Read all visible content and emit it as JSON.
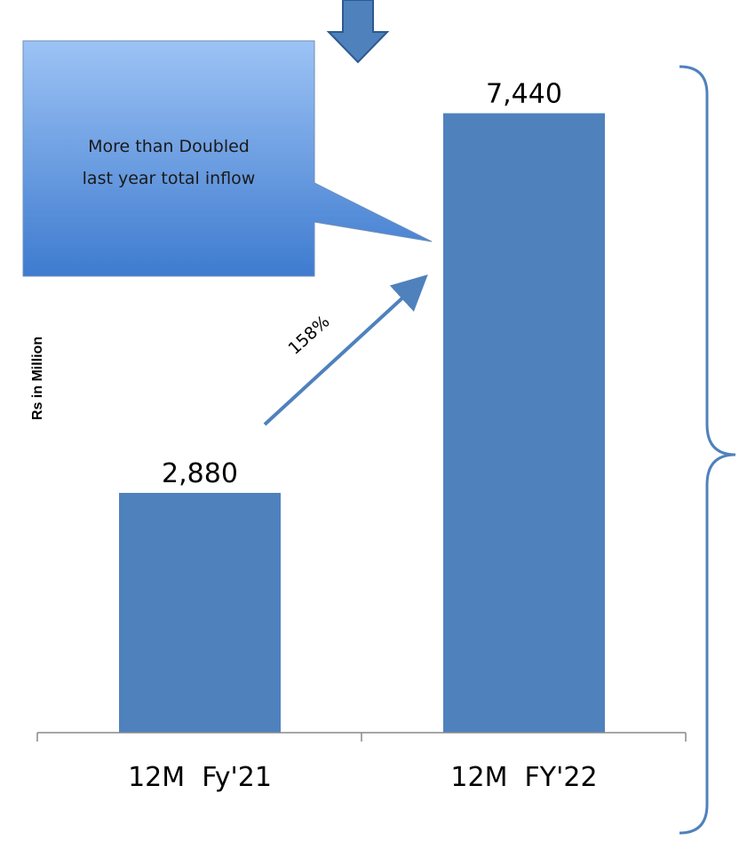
{
  "chart_data": {
    "type": "bar",
    "categories": [
      "12M  Fy'21",
      "12M  FY'22"
    ],
    "values": [
      2880,
      7440
    ],
    "value_labels": [
      "2,880",
      "7,440"
    ],
    "title": "",
    "xlabel": "",
    "ylabel": "Rs in Million",
    "ylim": [
      0,
      8000
    ],
    "grid": false,
    "bar_color": "#4F81BD",
    "annotations": {
      "growth": "158%",
      "callout_line1": "More than Doubled",
      "callout_line2": "last year total inflow"
    }
  },
  "colors": {
    "bar": "#4F81BD",
    "arrow": "#4F81BD",
    "callout_top": "#9DC3F5",
    "callout_bottom": "#3E7BCF",
    "brace": "#4F81BD"
  },
  "icons": {
    "top_arrow": "down-arrow-icon"
  }
}
